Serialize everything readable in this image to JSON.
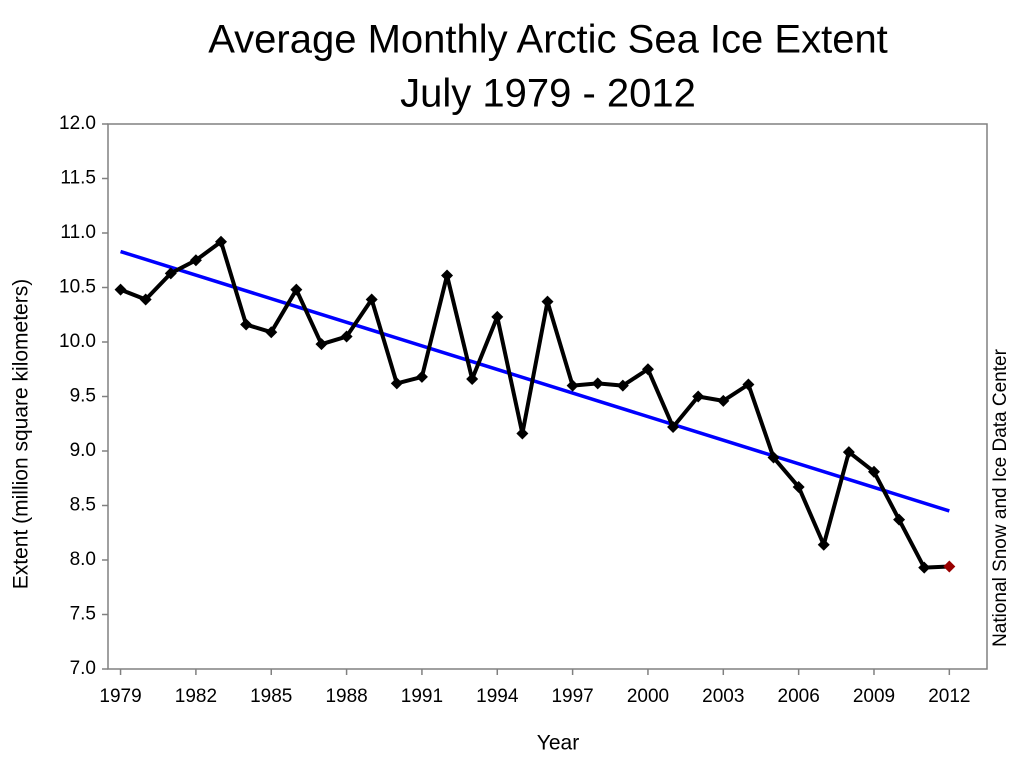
{
  "chart_data": {
    "type": "line",
    "title": "Average Monthly Arctic Sea Ice Extent",
    "subtitle": "July 1979 - 2012",
    "x_label": "Year",
    "y_label": "Extent (million square kilometers)",
    "source": "National Snow and Ice Data Center",
    "x": [
      1979,
      1980,
      1981,
      1982,
      1983,
      1984,
      1985,
      1986,
      1987,
      1988,
      1989,
      1990,
      1991,
      1992,
      1993,
      1994,
      1995,
      1996,
      1997,
      1998,
      1999,
      2000,
      2001,
      2002,
      2003,
      2004,
      2005,
      2006,
      2007,
      2008,
      2009,
      2010,
      2011,
      2012
    ],
    "series": [
      {
        "color": "#000000",
        "last_point_color": "#990000",
        "values": [
          10.48,
          10.39,
          10.63,
          10.75,
          10.92,
          10.16,
          10.09,
          10.48,
          9.98,
          10.05,
          10.39,
          9.62,
          9.68,
          10.61,
          9.66,
          10.23,
          9.16,
          10.37,
          9.6,
          9.62,
          9.6,
          9.75,
          9.22,
          9.5,
          9.46,
          9.61,
          8.94,
          8.67,
          8.14,
          8.99,
          8.81,
          8.37,
          7.93,
          7.94
        ]
      }
    ],
    "trend": {
      "x": [
        1979,
        2012
      ],
      "values": [
        10.83,
        8.45
      ],
      "color": "#0000ff"
    },
    "xlim": [
      1978.5,
      2013.5
    ],
    "xticks": [
      1979,
      1982,
      1985,
      1988,
      1991,
      1994,
      1997,
      2000,
      2003,
      2006,
      2009,
      2012
    ],
    "ylim": [
      7,
      12
    ],
    "yticks": [
      {
        "value": 7,
        "label": "7.0"
      },
      {
        "value": 7.5,
        "label": "7.5"
      },
      {
        "value": 8,
        "label": "8.0"
      },
      {
        "value": 8.5,
        "label": "8.5"
      },
      {
        "value": 9,
        "label": "9.0"
      },
      {
        "value": 9.5,
        "label": "9.5"
      },
      {
        "value": 10,
        "label": "10.0"
      },
      {
        "value": 10.5,
        "label": "10.5"
      },
      {
        "value": 11,
        "label": "11.0"
      },
      {
        "value": 11.5,
        "label": "11.5"
      },
      {
        "value": 12,
        "label": "12.0"
      }
    ],
    "grid": false
  }
}
